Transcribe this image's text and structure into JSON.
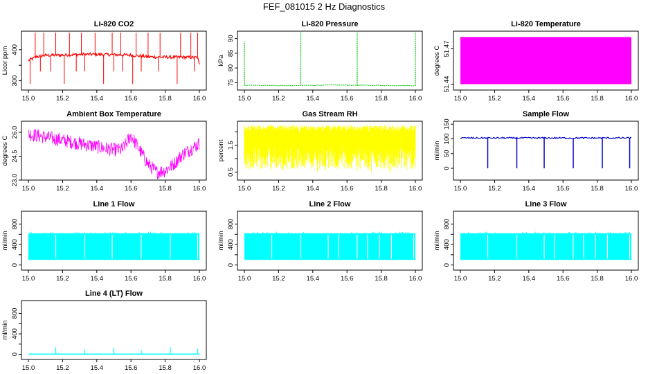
{
  "figure": {
    "title": "FEF_081015  2 Hz Diagnostics"
  },
  "chart_data": [
    {
      "id": "co2",
      "type": "line",
      "title": "Li-820 CO2",
      "xlabel": "",
      "ylabel": "Licor ppm",
      "color": "#ff0000",
      "xlim": [
        15.0,
        16.0
      ],
      "ylim": [
        270,
        460
      ],
      "xticks": [
        "15.0",
        "15.2",
        "15.4",
        "15.6",
        "15.8",
        "16.0"
      ],
      "yticks": [
        300,
        350,
        400
      ],
      "yticklabels": [
        "300",
        "",
        "400"
      ],
      "series": [
        {
          "x": [
            15.0,
            15.05,
            15.1,
            15.2,
            15.3,
            15.4,
            15.5,
            15.6,
            15.7,
            15.8,
            15.9,
            15.99,
            16.0
          ],
          "values": [
            365,
            378,
            382,
            383,
            385,
            385,
            384,
            383,
            377,
            376,
            376,
            375,
            350
          ],
          "spikes_up": [
            15.04,
            15.09,
            15.16,
            15.24,
            15.31,
            15.39,
            15.49,
            15.54,
            15.63,
            15.7,
            15.77,
            15.89,
            15.95,
            15.99
          ],
          "spikes_down": [
            15.01,
            15.07,
            15.13,
            15.21,
            15.28,
            15.33,
            15.44,
            15.5,
            15.55,
            15.61,
            15.66,
            15.76,
            15.87,
            15.97
          ]
        }
      ]
    },
    {
      "id": "pressure",
      "type": "line",
      "title": "Li-820 Pressure",
      "xlabel": "",
      "ylabel": "kPa",
      "color": "#00c000",
      "xlim": [
        15.0,
        16.0
      ],
      "ylim": [
        72.5,
        92.5
      ],
      "xticks": [
        "15.0",
        "15.2",
        "15.4",
        "15.6",
        "15.8",
        "16.0"
      ],
      "yticks": [
        75,
        80,
        85,
        90
      ],
      "yticklabels": [
        "75",
        "80",
        "85",
        "90"
      ],
      "series": [
        {
          "x": [
            15.0,
            15.25,
            15.5,
            15.75,
            16.0
          ],
          "values": [
            74.2,
            74.0,
            74.2,
            74.1,
            74.0
          ],
          "spikes": [
            {
              "x": 15.0,
              "y": 89
            },
            {
              "x": 15.33,
              "y": 92
            },
            {
              "x": 15.66,
              "y": 92
            },
            {
              "x": 16.0,
              "y": 92
            }
          ]
        }
      ]
    },
    {
      "id": "temperature",
      "type": "area",
      "title": "Li-820 Temperature",
      "xlabel": "",
      "ylabel": "degrees C",
      "color": "#ff00ff",
      "xlim": [
        15.0,
        16.0
      ],
      "ylim": [
        51.435,
        51.485
      ],
      "xticks": [
        "15.0",
        "15.2",
        "15.4",
        "15.6",
        "15.8",
        "16.0"
      ],
      "yticks": [
        51.44,
        51.47
      ],
      "yticklabels": [
        "51.44",
        "51.47"
      ],
      "series": [
        {
          "band": [
            51.44,
            51.48
          ]
        }
      ]
    },
    {
      "id": "ambient",
      "type": "line",
      "title": "Ambient Box Temperature",
      "xlabel": "",
      "ylabel": "degrees C",
      "color": "#ff00ff",
      "xlim": [
        15.0,
        16.0
      ],
      "ylim": [
        23.0,
        26.7
      ],
      "xticks": [
        "15.0",
        "15.2",
        "15.4",
        "15.6",
        "15.8",
        "16.0"
      ],
      "yticks": [
        23.0,
        24.5,
        26.0
      ],
      "yticklabels": [
        "23.0",
        "24.5",
        "26.0"
      ],
      "series": [
        {
          "x": [
            15.0,
            15.1,
            15.2,
            15.3,
            15.4,
            15.5,
            15.55,
            15.6,
            15.65,
            15.7,
            15.75,
            15.8,
            15.85,
            15.9,
            16.0
          ],
          "values": [
            25.9,
            25.7,
            25.5,
            25.3,
            25.1,
            24.9,
            24.9,
            25.8,
            24.9,
            24.0,
            23.5,
            23.6,
            24.0,
            24.6,
            25.3
          ],
          "noise": 0.55
        }
      ]
    },
    {
      "id": "rh",
      "type": "line",
      "title": "Gas Stream RH",
      "xlabel": "",
      "ylabel": "percent",
      "color": "#ffff00",
      "xlim": [
        15.0,
        16.0
      ],
      "ylim": [
        0.2,
        2.4
      ],
      "xticks": [
        "15.0",
        "15.2",
        "15.4",
        "15.6",
        "15.8",
        "16.0"
      ],
      "yticks": [
        0.5,
        1.0,
        1.5,
        2.0
      ],
      "yticklabels": [
        "0.5",
        "",
        "1.5",
        ""
      ],
      "series": [
        {
          "band": [
            0.6,
            2.25
          ]
        }
      ]
    },
    {
      "id": "sample",
      "type": "line",
      "title": "Sample Flow",
      "xlabel": "",
      "ylabel": "ml/min",
      "color": "#0000cc",
      "xlim": [
        15.0,
        16.0
      ],
      "ylim": [
        -40,
        160
      ],
      "xticks": [
        "15.0",
        "15.2",
        "15.4",
        "15.6",
        "15.8",
        "16.0"
      ],
      "yticks": [
        0,
        50,
        100,
        150
      ],
      "yticklabels": [
        "0",
        "50",
        "100",
        "150"
      ],
      "series": [
        {
          "baseline": 103,
          "dips": [
            15.16,
            15.33,
            15.49,
            15.66,
            15.83,
            15.99
          ]
        }
      ]
    },
    {
      "id": "line1",
      "type": "area",
      "title": "Line 1 Flow",
      "xlabel": "",
      "ylabel": "ml/min",
      "color": "#00ffff",
      "xlim": [
        15.0,
        16.0
      ],
      "ylim": [
        -100,
        1050
      ],
      "xticks": [
        "15.0",
        "15.2",
        "15.4",
        "15.6",
        "15.8",
        "16.0"
      ],
      "yticks": [
        0,
        200,
        400,
        600,
        800
      ],
      "yticklabels": [
        "0",
        "",
        "400",
        "",
        "800"
      ],
      "series": [
        {
          "band": [
            100,
            620
          ],
          "gaps": [
            15.16,
            15.33,
            15.49,
            15.66,
            15.83,
            15.99
          ]
        }
      ]
    },
    {
      "id": "line2",
      "type": "area",
      "title": "Line 2 Flow",
      "xlabel": "",
      "ylabel": "ml/min",
      "color": "#00ffff",
      "xlim": [
        15.0,
        16.0
      ],
      "ylim": [
        -100,
        1050
      ],
      "xticks": [
        "15.0",
        "15.2",
        "15.4",
        "15.6",
        "15.8",
        "16.0"
      ],
      "yticks": [
        0,
        200,
        400,
        600,
        800
      ],
      "yticklabels": [
        "0",
        "",
        "400",
        "",
        "800"
      ],
      "series": [
        {
          "band": [
            100,
            620
          ],
          "gaps": [
            15.16,
            15.33,
            15.49,
            15.55,
            15.66,
            15.72,
            15.79,
            15.86,
            15.99
          ]
        }
      ]
    },
    {
      "id": "line3",
      "type": "area",
      "title": "Line 3 Flow",
      "xlabel": "",
      "ylabel": "ml/min",
      "color": "#00ffff",
      "xlim": [
        15.0,
        16.0
      ],
      "ylim": [
        -100,
        1050
      ],
      "xticks": [
        "15.0",
        "15.2",
        "15.4",
        "15.6",
        "15.8",
        "16.0"
      ],
      "yticks": [
        0,
        200,
        400,
        600,
        800
      ],
      "yticklabels": [
        "0",
        "",
        "400",
        "",
        "800"
      ],
      "series": [
        {
          "band": [
            100,
            620
          ],
          "gaps": [
            15.16,
            15.33,
            15.49,
            15.55,
            15.66,
            15.72,
            15.79,
            15.86,
            15.99
          ]
        }
      ]
    },
    {
      "id": "line4",
      "type": "line",
      "title": "Line 4 (LT) Flow",
      "xlabel": "",
      "ylabel": "ml/min",
      "color": "#00ffff",
      "xlim": [
        15.0,
        16.0
      ],
      "ylim": [
        -100,
        1050
      ],
      "xticks": [
        "15.0",
        "15.2",
        "15.4",
        "15.6",
        "15.8",
        "16.0"
      ],
      "yticks": [
        0,
        200,
        400,
        600,
        800
      ],
      "yticklabels": [
        "0",
        "",
        "400",
        "",
        "800"
      ],
      "series": [
        {
          "baseline": 5,
          "spikes": [
            {
              "x": 15.16,
              "y": 140
            },
            {
              "x": 15.33,
              "y": 90
            },
            {
              "x": 15.5,
              "y": 130
            },
            {
              "x": 15.66,
              "y": 80
            },
            {
              "x": 15.83,
              "y": 140
            },
            {
              "x": 15.99,
              "y": 110
            }
          ]
        }
      ]
    }
  ]
}
